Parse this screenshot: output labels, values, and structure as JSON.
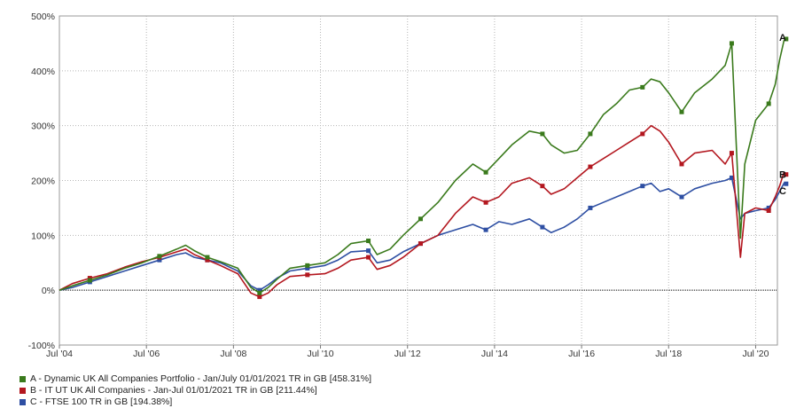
{
  "chart_data": {
    "type": "line",
    "title": "",
    "xlabel": "",
    "ylabel": "",
    "x_ticks": [
      "Jul '04",
      "Jul '06",
      "Jul '08",
      "Jul '10",
      "Jul '12",
      "Jul '14",
      "Jul '16",
      "Jul '18",
      "Jul '20"
    ],
    "x_tick_years": [
      2004.5,
      2006.5,
      2008.5,
      2010.5,
      2012.5,
      2014.5,
      2016.5,
      2018.5,
      2020.5
    ],
    "xlim": [
      2004.5,
      2021.0
    ],
    "y_ticks": [
      "-100%",
      "0%",
      "100%",
      "200%",
      "300%",
      "400%",
      "500%"
    ],
    "y_tick_values": [
      -100,
      0,
      100,
      200,
      300,
      400,
      500
    ],
    "ylim": [
      -100,
      500
    ],
    "grid": true,
    "zero_line": true,
    "legend_position": "bottom-left",
    "series": [
      {
        "name": "A - Dynamic UK All Companies Portfolio - Jan/July 01/01/2021 TR in GB [458.31%]",
        "end_label": "A",
        "color": "#3a7a1c",
        "points": [
          [
            2004.5,
            0
          ],
          [
            2004.8,
            8
          ],
          [
            2005.2,
            18
          ],
          [
            2005.6,
            28
          ],
          [
            2006.0,
            40
          ],
          [
            2006.4,
            50
          ],
          [
            2006.8,
            62
          ],
          [
            2007.2,
            75
          ],
          [
            2007.4,
            82
          ],
          [
            2007.6,
            72
          ],
          [
            2007.9,
            60
          ],
          [
            2008.2,
            52
          ],
          [
            2008.6,
            40
          ],
          [
            2008.9,
            5
          ],
          [
            2009.1,
            -5
          ],
          [
            2009.3,
            5
          ],
          [
            2009.5,
            20
          ],
          [
            2009.8,
            40
          ],
          [
            2010.2,
            45
          ],
          [
            2010.6,
            50
          ],
          [
            2010.9,
            65
          ],
          [
            2011.2,
            85
          ],
          [
            2011.6,
            90
          ],
          [
            2011.8,
            65
          ],
          [
            2012.1,
            75
          ],
          [
            2012.4,
            100
          ],
          [
            2012.8,
            130
          ],
          [
            2013.2,
            160
          ],
          [
            2013.6,
            200
          ],
          [
            2014.0,
            230
          ],
          [
            2014.3,
            215
          ],
          [
            2014.6,
            240
          ],
          [
            2014.9,
            265
          ],
          [
            2015.3,
            290
          ],
          [
            2015.6,
            285
          ],
          [
            2015.8,
            265
          ],
          [
            2016.1,
            250
          ],
          [
            2016.4,
            255
          ],
          [
            2016.7,
            285
          ],
          [
            2017.0,
            320
          ],
          [
            2017.3,
            340
          ],
          [
            2017.6,
            365
          ],
          [
            2017.9,
            370
          ],
          [
            2018.1,
            385
          ],
          [
            2018.3,
            380
          ],
          [
            2018.5,
            360
          ],
          [
            2018.8,
            325
          ],
          [
            2019.1,
            360
          ],
          [
            2019.5,
            385
          ],
          [
            2019.8,
            410
          ],
          [
            2019.95,
            450
          ],
          [
            2020.15,
            95
          ],
          [
            2020.25,
            230
          ],
          [
            2020.5,
            310
          ],
          [
            2020.8,
            340
          ],
          [
            2020.95,
            375
          ],
          [
            2021.05,
            420
          ],
          [
            2021.15,
            455
          ],
          [
            2021.2,
            458
          ]
        ]
      },
      {
        "name": "B - IT UT UK All Companies - Jan-Jul 01/01/2021 TR in GB [211.44%]",
        "end_label": "B",
        "color": "#b3171f",
        "points": [
          [
            2004.5,
            0
          ],
          [
            2004.8,
            12
          ],
          [
            2005.2,
            22
          ],
          [
            2005.6,
            30
          ],
          [
            2006.0,
            42
          ],
          [
            2006.4,
            52
          ],
          [
            2006.8,
            60
          ],
          [
            2007.2,
            70
          ],
          [
            2007.4,
            75
          ],
          [
            2007.6,
            65
          ],
          [
            2007.9,
            55
          ],
          [
            2008.2,
            45
          ],
          [
            2008.6,
            30
          ],
          [
            2008.9,
            -5
          ],
          [
            2009.1,
            -12
          ],
          [
            2009.3,
            -5
          ],
          [
            2009.5,
            10
          ],
          [
            2009.8,
            25
          ],
          [
            2010.2,
            28
          ],
          [
            2010.6,
            30
          ],
          [
            2010.9,
            40
          ],
          [
            2011.2,
            55
          ],
          [
            2011.6,
            60
          ],
          [
            2011.8,
            38
          ],
          [
            2012.1,
            45
          ],
          [
            2012.4,
            60
          ],
          [
            2012.8,
            85
          ],
          [
            2013.2,
            100
          ],
          [
            2013.6,
            140
          ],
          [
            2014.0,
            170
          ],
          [
            2014.3,
            160
          ],
          [
            2014.6,
            170
          ],
          [
            2014.9,
            195
          ],
          [
            2015.3,
            205
          ],
          [
            2015.6,
            190
          ],
          [
            2015.8,
            175
          ],
          [
            2016.1,
            185
          ],
          [
            2016.4,
            205
          ],
          [
            2016.7,
            225
          ],
          [
            2017.0,
            240
          ],
          [
            2017.3,
            255
          ],
          [
            2017.6,
            270
          ],
          [
            2017.9,
            285
          ],
          [
            2018.1,
            300
          ],
          [
            2018.3,
            290
          ],
          [
            2018.5,
            270
          ],
          [
            2018.8,
            230
          ],
          [
            2019.1,
            250
          ],
          [
            2019.5,
            255
          ],
          [
            2019.8,
            230
          ],
          [
            2019.95,
            250
          ],
          [
            2020.15,
            60
          ],
          [
            2020.25,
            140
          ],
          [
            2020.5,
            150
          ],
          [
            2020.8,
            145
          ],
          [
            2020.95,
            170
          ],
          [
            2021.05,
            190
          ],
          [
            2021.15,
            215
          ],
          [
            2021.2,
            211
          ]
        ]
      },
      {
        "name": "C - FTSE 100 TR in GB [194.38%]",
        "end_label": "C",
        "color": "#2e4fa3",
        "points": [
          [
            2004.5,
            0
          ],
          [
            2004.8,
            5
          ],
          [
            2005.2,
            15
          ],
          [
            2005.6,
            25
          ],
          [
            2006.0,
            35
          ],
          [
            2006.4,
            45
          ],
          [
            2006.8,
            55
          ],
          [
            2007.2,
            65
          ],
          [
            2007.4,
            68
          ],
          [
            2007.6,
            60
          ],
          [
            2007.9,
            55
          ],
          [
            2008.2,
            50
          ],
          [
            2008.6,
            35
          ],
          [
            2008.9,
            8
          ],
          [
            2009.1,
            0
          ],
          [
            2009.3,
            10
          ],
          [
            2009.5,
            22
          ],
          [
            2009.8,
            35
          ],
          [
            2010.2,
            40
          ],
          [
            2010.6,
            45
          ],
          [
            2010.9,
            55
          ],
          [
            2011.2,
            70
          ],
          [
            2011.6,
            72
          ],
          [
            2011.8,
            50
          ],
          [
            2012.1,
            55
          ],
          [
            2012.4,
            70
          ],
          [
            2012.8,
            85
          ],
          [
            2013.2,
            100
          ],
          [
            2013.6,
            110
          ],
          [
            2014.0,
            120
          ],
          [
            2014.3,
            110
          ],
          [
            2014.6,
            125
          ],
          [
            2014.9,
            120
          ],
          [
            2015.3,
            130
          ],
          [
            2015.6,
            115
          ],
          [
            2015.8,
            105
          ],
          [
            2016.1,
            115
          ],
          [
            2016.4,
            130
          ],
          [
            2016.7,
            150
          ],
          [
            2017.0,
            160
          ],
          [
            2017.3,
            170
          ],
          [
            2017.6,
            180
          ],
          [
            2017.9,
            190
          ],
          [
            2018.1,
            195
          ],
          [
            2018.3,
            180
          ],
          [
            2018.5,
            185
          ],
          [
            2018.8,
            170
          ],
          [
            2019.1,
            185
          ],
          [
            2019.5,
            195
          ],
          [
            2019.8,
            200
          ],
          [
            2019.95,
            205
          ],
          [
            2020.15,
            130
          ],
          [
            2020.25,
            140
          ],
          [
            2020.5,
            145
          ],
          [
            2020.8,
            150
          ],
          [
            2020.95,
            165
          ],
          [
            2021.05,
            180
          ],
          [
            2021.15,
            195
          ],
          [
            2021.2,
            194
          ]
        ]
      }
    ]
  }
}
